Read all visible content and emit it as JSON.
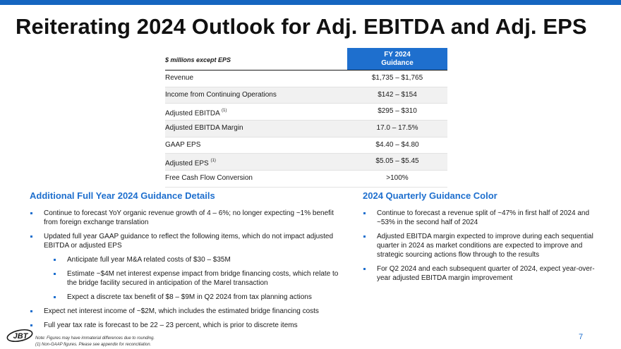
{
  "title": "Reiterating 2024 Outlook for Adj. EBITDA and Adj. EPS",
  "table": {
    "units_label": "$ millions except EPS",
    "column_header_line1": "FY 2024",
    "column_header_line2": "Guidance",
    "rows": [
      {
        "metric": "Revenue",
        "note": "",
        "value": "$1,735 – $1,765"
      },
      {
        "metric": "Income from Continuing Operations",
        "note": "",
        "value": "$142 – $154"
      },
      {
        "metric": "Adjusted EBITDA",
        "note": "(1)",
        "value": "$295 – $310"
      },
      {
        "metric": "Adjusted EBITDA Margin",
        "note": "",
        "value": "17.0 – 17.5%"
      },
      {
        "metric": "GAAP EPS",
        "note": "",
        "value": "$4.40 – $4.80"
      },
      {
        "metric": "Adjusted EPS",
        "note": "(1)",
        "value": "$5.05 – $5.45"
      },
      {
        "metric": "Free Cash Flow Conversion",
        "note": "",
        "value": ">100%"
      }
    ]
  },
  "left_section": {
    "title": "Additional Full Year 2024 Guidance Details",
    "bullets": [
      "Continue to forecast YoY organic revenue growth of 4 – 6%; no longer expecting ~1% benefit from foreign exchange translation",
      "Updated full year GAAP guidance to reflect the following items, which do not impact adjusted EBITDA or adjusted EPS",
      "Anticipate full year M&A related costs of $30 – $35M",
      "Estimate ~$4M net interest expense impact from bridge financing costs, which relate to the bridge facility secured in anticipation of the Marel transaction",
      "Expect a discrete tax benefit of $8 – $9M in Q2 2024 from tax planning actions",
      "Expect net interest income of ~$2M, which includes the estimated bridge financing costs",
      "Full year tax rate is forecast to be 22 – 23 percent, which is prior to discrete items"
    ]
  },
  "right_section": {
    "title": "2024 Quarterly Guidance Color",
    "bullets": [
      "Continue to forecast a revenue split of ~47% in first half of 2024 and ~53% in the second half of 2024",
      "Adjusted EBITDA margin expected to improve during each sequential quarter in 2024 as market conditions are expected to improve and strategic sourcing actions flow through to the results",
      "For Q2 2024 and each subsequent quarter of 2024, expect year-over-year adjusted EBITDA margin improvement"
    ]
  },
  "footer": {
    "logo_text": "JBT",
    "note1": "Note: Figures may have immaterial differences due to rounding.",
    "note2": "(1) Non-GAAP figures. Please see appendix for reconciliation.",
    "page_number": "7"
  },
  "colors": {
    "accent": "#1e6fce",
    "top_bar": "#1565c0",
    "alt_row": "#f1f1f1"
  }
}
